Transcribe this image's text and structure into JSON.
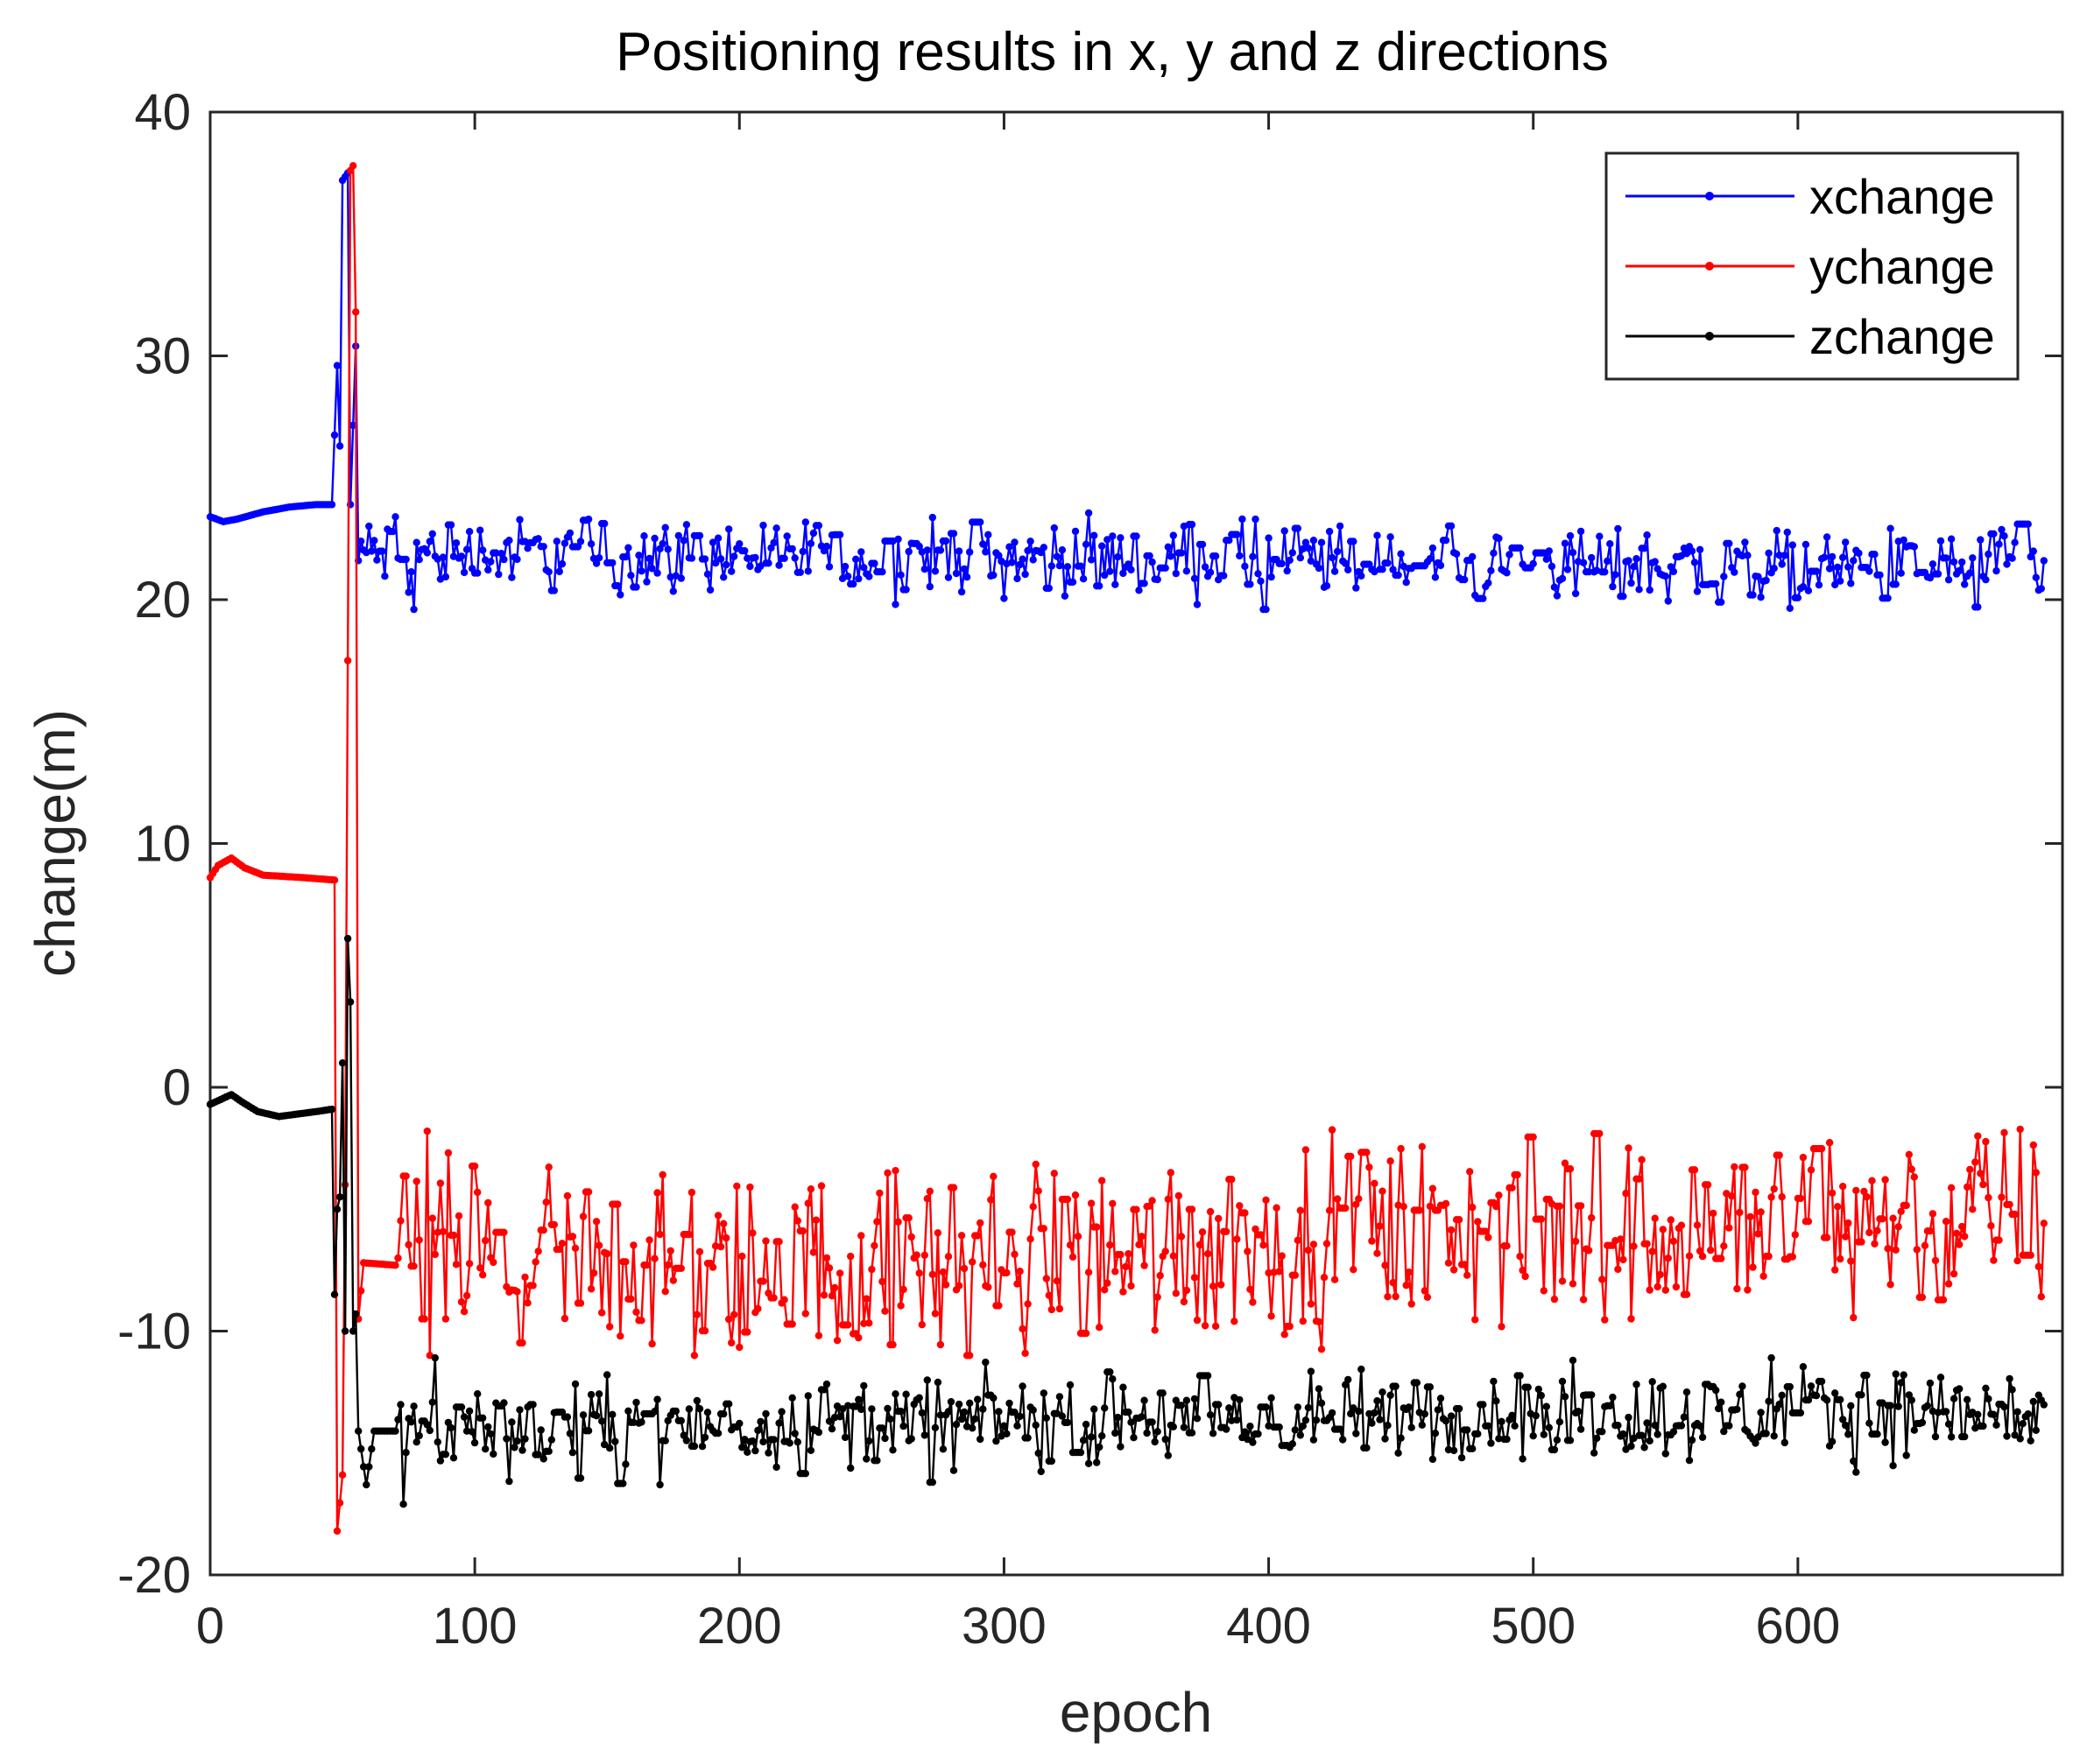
{
  "chart_data": {
    "type": "line",
    "title": "Positioning results in x, y and z directions",
    "xlabel": "epoch",
    "ylabel": "change(m)",
    "xlim": [
      0,
      700
    ],
    "ylim": [
      -20,
      40
    ],
    "xticks": [
      "0",
      "100",
      "200",
      "300",
      "400",
      "500",
      "600"
    ],
    "yticks": [
      "-20",
      "-10",
      "0",
      "10",
      "20",
      "30",
      "40"
    ],
    "xtick_values": [
      0,
      100,
      200,
      300,
      400,
      500,
      600
    ],
    "ytick_values": [
      -20,
      -10,
      0,
      10,
      20,
      30,
      40
    ],
    "grid": false,
    "legend_position": "top-right",
    "x_range": [
      0,
      693
    ],
    "series": [
      {
        "name": "xchange",
        "color": "#0000ff",
        "initial": [
          [
            0,
            23.4
          ],
          [
            5,
            23.2
          ],
          [
            10,
            23.3
          ],
          [
            20,
            23.6
          ],
          [
            30,
            23.8
          ],
          [
            40,
            23.9
          ],
          [
            46,
            23.9
          ],
          [
            48,
            29.6
          ],
          [
            49,
            26.3
          ],
          [
            50,
            37.2
          ],
          [
            52,
            37.5
          ],
          [
            53,
            23.9
          ],
          [
            55,
            30.4
          ],
          [
            56,
            21.6
          ],
          [
            57,
            22.4
          ]
        ],
        "noise_start": 58,
        "noise_trend": [
          [
            58,
            21.9
          ],
          [
            300,
            21.7
          ],
          [
            693,
            21.3
          ]
        ],
        "noise_amp": 0.9,
        "spikes": [
          [
            70,
            23.4
          ],
          [
            75,
            20.3
          ],
          [
            77,
            19.6
          ],
          [
            143,
            23.3
          ],
          [
            155,
            20.2
          ],
          [
            395,
            23.3
          ],
          [
            398,
            19.6
          ],
          [
            570,
            19.9
          ],
          [
            667,
            19.7
          ],
          [
            683,
            23.1
          ]
        ]
      },
      {
        "name": "ychange",
        "color": "#ff0000",
        "initial": [
          [
            0,
            8.6
          ],
          [
            3,
            9.1
          ],
          [
            8,
            9.4
          ],
          [
            13,
            9.0
          ],
          [
            20,
            8.7
          ],
          [
            35,
            8.6
          ],
          [
            47,
            8.5
          ],
          [
            48,
            -18.2
          ],
          [
            50,
            -15.9
          ],
          [
            51,
            -4.0
          ],
          [
            52,
            17.5
          ],
          [
            53,
            37.6
          ],
          [
            54,
            37.8
          ],
          [
            55,
            31.8
          ],
          [
            56,
            -9.5
          ],
          [
            58,
            -7.2
          ],
          [
            70,
            -7.3
          ]
        ],
        "noise_start": 71,
        "noise_trend": [
          [
            71,
            -6.8
          ],
          [
            200,
            -7.6
          ],
          [
            400,
            -6.3
          ],
          [
            693,
            -5.3
          ]
        ],
        "noise_amp": 2.3,
        "spikes": [
          [
            82,
            -1.8
          ],
          [
            83,
            -11.0
          ],
          [
            183,
            -11.0
          ],
          [
            286,
            -11.0
          ],
          [
            380,
            -9.8
          ],
          [
            523,
            -1.9
          ],
          [
            668,
            -2.0
          ],
          [
            690,
            -3.5
          ]
        ]
      },
      {
        "name": "zchange",
        "color": "#000000",
        "initial": [
          [
            0,
            -0.7
          ],
          [
            4,
            -0.5
          ],
          [
            8,
            -0.3
          ],
          [
            12,
            -0.6
          ],
          [
            18,
            -1.0
          ],
          [
            26,
            -1.2
          ],
          [
            40,
            -1.0
          ],
          [
            46,
            -0.9
          ],
          [
            47,
            -8.5
          ],
          [
            48,
            -5.0
          ],
          [
            49,
            -4.5
          ],
          [
            50,
            1.0
          ],
          [
            51,
            -10.0
          ],
          [
            52,
            6.1
          ],
          [
            53,
            3.5
          ],
          [
            54,
            -10.0
          ],
          [
            55,
            -9.3
          ],
          [
            56,
            -14.1
          ],
          [
            59,
            -16.3
          ],
          [
            62,
            -14.1
          ],
          [
            70,
            -14.1
          ]
        ],
        "noise_start": 71,
        "noise_trend": [
          [
            71,
            -14.0
          ],
          [
            300,
            -13.7
          ],
          [
            693,
            -13.3
          ]
        ],
        "noise_amp": 1.1,
        "spikes": [
          [
            73,
            -17.1
          ],
          [
            85,
            -11.1
          ],
          [
            170,
            -16.3
          ],
          [
            272,
            -16.2
          ],
          [
            515,
            -11.2
          ],
          [
            590,
            -11.1
          ],
          [
            640,
            -11.8
          ],
          [
            688,
            -14.5
          ]
        ]
      }
    ]
  }
}
